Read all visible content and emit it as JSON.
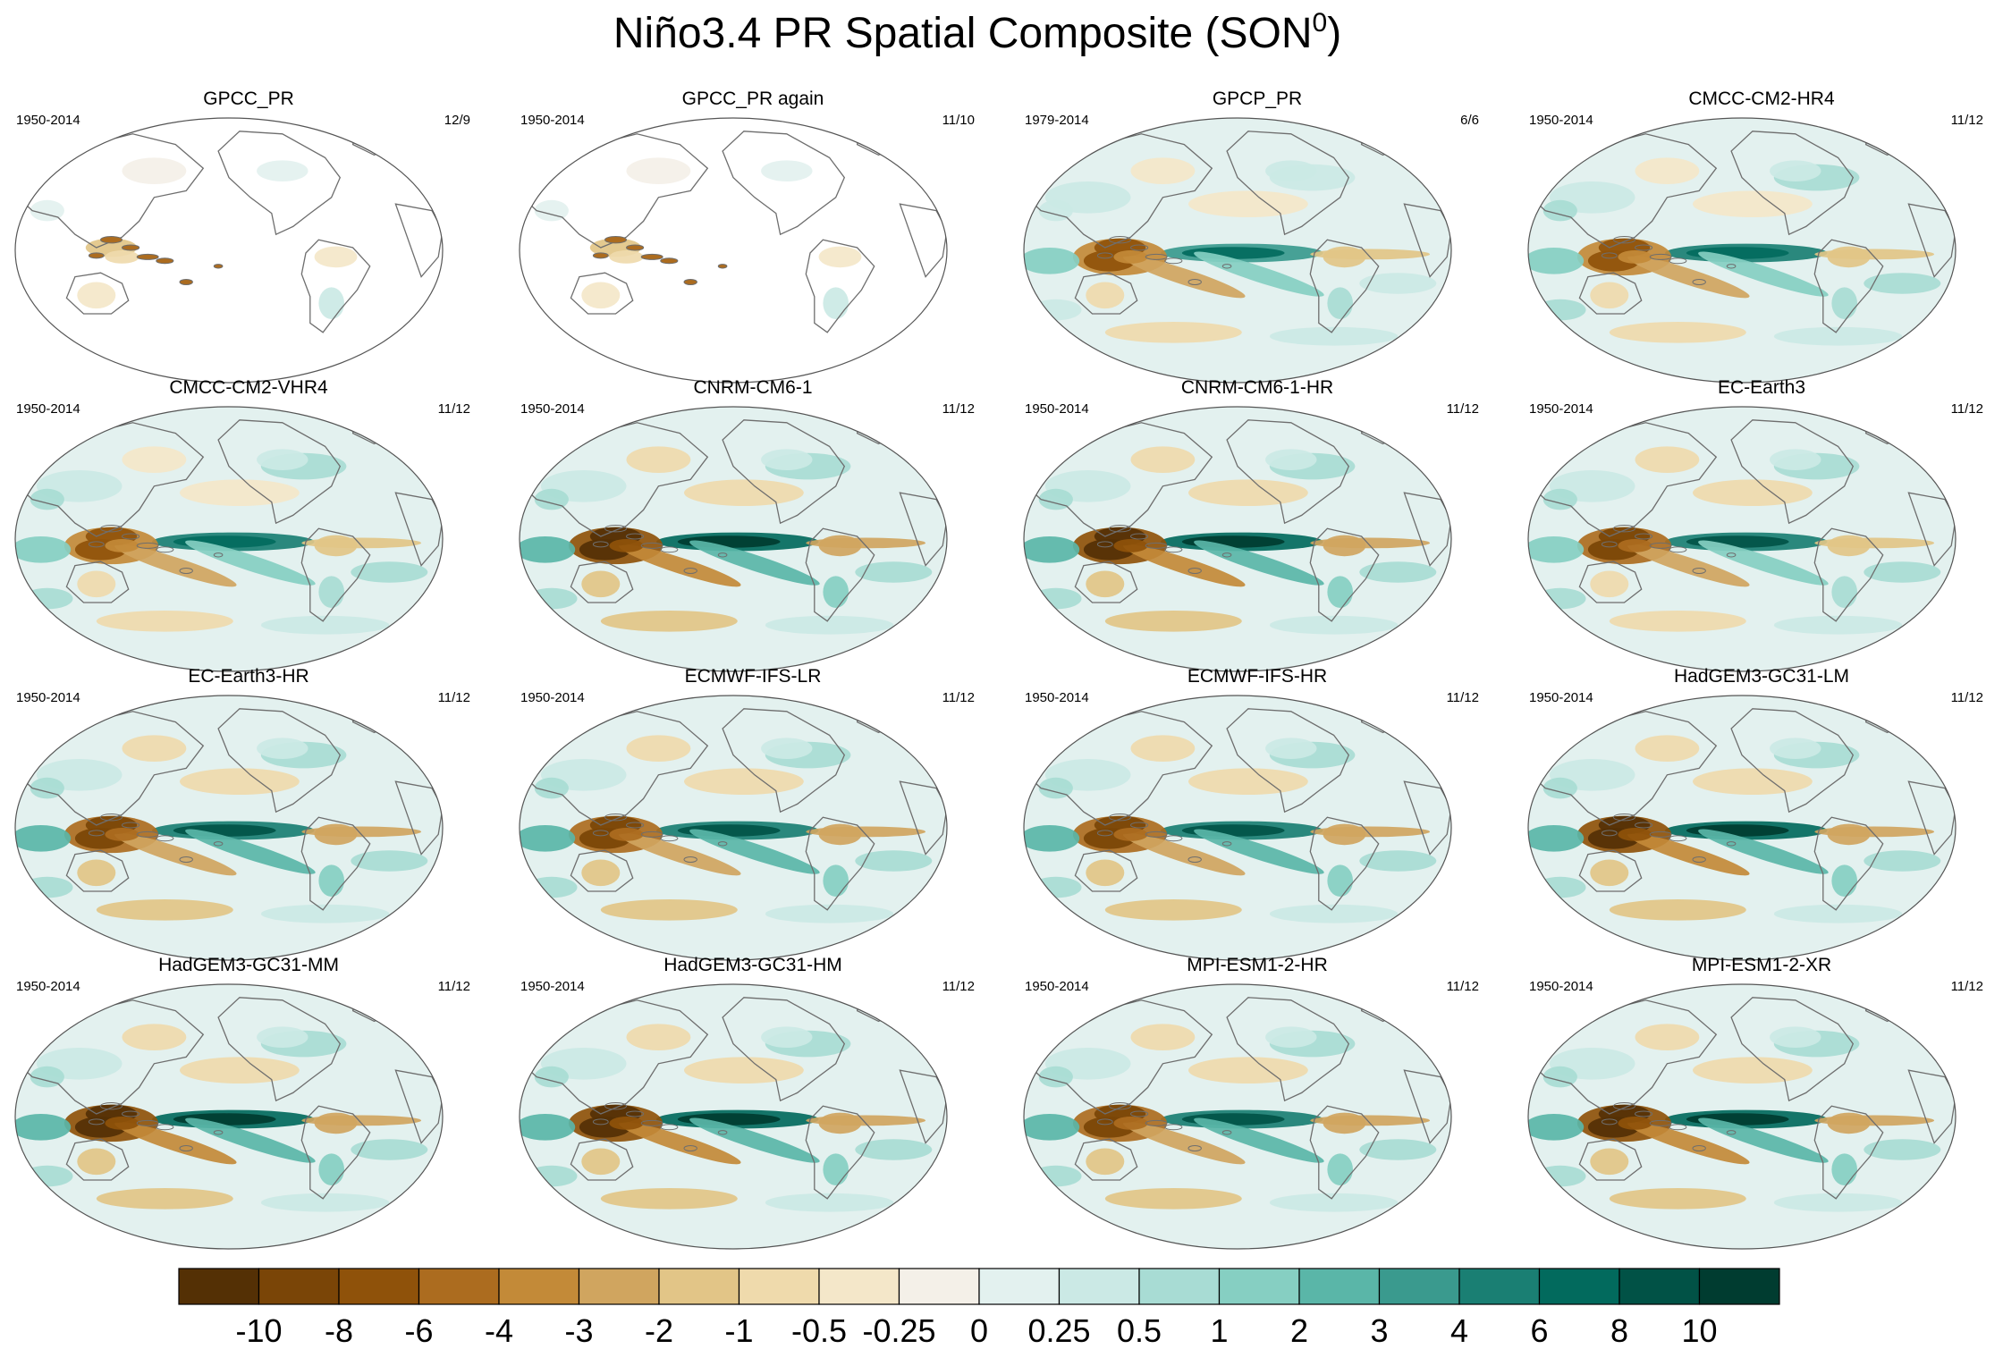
{
  "figure": {
    "title_main": "Niño3.4 PR Spatial Composite (SON",
    "title_sup": "0",
    "title_close": ")"
  },
  "chart_data": {
    "type": "heatmap",
    "title": "Niño3.4 PR Spatial Composite (SON0)",
    "projection": "global map panels",
    "panels": [
      {
        "name": "GPCC_PR",
        "period": "1950-2014",
        "count": "12/9",
        "land_only": true,
        "pattern_strength": 0.35
      },
      {
        "name": "GPCC_PR again",
        "period": "1950-2014",
        "count": "11/10",
        "land_only": true,
        "pattern_strength": 0.35
      },
      {
        "name": "GPCP_PR",
        "period": "1979-2014",
        "count": "6/6",
        "land_only": false,
        "pattern_strength": 0.75
      },
      {
        "name": "CMCC-CM2-HR4",
        "period": "1950-2014",
        "count": "11/12",
        "land_only": false,
        "pattern_strength": 0.8
      },
      {
        "name": "CMCC-CM2-VHR4",
        "period": "1950-2014",
        "count": "11/12",
        "land_only": false,
        "pattern_strength": 0.8
      },
      {
        "name": "CNRM-CM6-1",
        "period": "1950-2014",
        "count": "11/12",
        "land_only": false,
        "pattern_strength": 1.0
      },
      {
        "name": "CNRM-CM6-1-HR",
        "period": "1950-2014",
        "count": "11/12",
        "land_only": false,
        "pattern_strength": 1.0
      },
      {
        "name": "EC-Earth3",
        "period": "1950-2014",
        "count": "11/12",
        "land_only": false,
        "pattern_strength": 0.85
      },
      {
        "name": "EC-Earth3-HR",
        "period": "1950-2014",
        "count": "11/12",
        "land_only": false,
        "pattern_strength": 0.9
      },
      {
        "name": "ECMWF-IFS-LR",
        "period": "1950-2014",
        "count": "11/12",
        "land_only": false,
        "pattern_strength": 0.9
      },
      {
        "name": "ECMWF-IFS-HR",
        "period": "1950-2014",
        "count": "11/12",
        "land_only": false,
        "pattern_strength": 0.9
      },
      {
        "name": "HadGEM3-GC31-LM",
        "period": "1950-2014",
        "count": "11/12",
        "land_only": false,
        "pattern_strength": 0.95
      },
      {
        "name": "HadGEM3-GC31-MM",
        "period": "1950-2014",
        "count": "11/12",
        "land_only": false,
        "pattern_strength": 0.95
      },
      {
        "name": "HadGEM3-GC31-HM",
        "period": "1950-2014",
        "count": "11/12",
        "land_only": false,
        "pattern_strength": 0.95
      },
      {
        "name": "MPI-ESM1-2-HR",
        "period": "1950-2014",
        "count": "11/12",
        "land_only": false,
        "pattern_strength": 0.9
      },
      {
        "name": "MPI-ESM1-2-XR",
        "period": "1950-2014",
        "count": "11/12",
        "land_only": false,
        "pattern_strength": 0.95
      }
    ],
    "colorbar": {
      "labels": [
        "-10",
        "-8",
        "-6",
        "-4",
        "-3",
        "-2",
        "-1",
        "-0.5",
        "-0.25",
        "0",
        "0.25",
        "0.5",
        "1",
        "2",
        "3",
        "4",
        "6",
        "8",
        "10"
      ],
      "colors": [
        "#543005",
        "#7a4507",
        "#8f520a",
        "#ac6c1f",
        "#c38a38",
        "#d0a55f",
        "#e2c587",
        "#efdaac",
        "#f4e7c9",
        "#f4f0e8",
        "#e3f1ef",
        "#cbe9e5",
        "#a8dcd4",
        "#86cfc2",
        "#5ab6a8",
        "#3a9a8e",
        "#1a7f73",
        "#026a5d",
        "#015246",
        "#003c30"
      ]
    },
    "land_color": "#ffffff",
    "coastline_color": "#6e6e6e"
  }
}
